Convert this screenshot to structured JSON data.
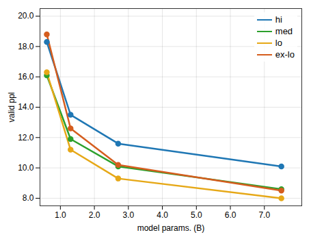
{
  "chart_data": {
    "type": "line",
    "xlabel": "model params. (B)",
    "ylabel": "valid ppl",
    "x": [
      0.6,
      1.3,
      2.7,
      7.5
    ],
    "series": [
      {
        "name": "hi",
        "color": "#1f77b4",
        "values": [
          18.3,
          13.5,
          11.6,
          10.1
        ]
      },
      {
        "name": "med",
        "color": "#2ca02c",
        "values": [
          16.1,
          11.9,
          10.1,
          8.6
        ]
      },
      {
        "name": "lo",
        "color": "#e6a817",
        "values": [
          16.3,
          11.2,
          9.3,
          8.0
        ]
      },
      {
        "name": "ex-lo",
        "color": "#d55d1e",
        "values": [
          18.8,
          12.6,
          10.2,
          8.5
        ]
      }
    ],
    "xlim": [
      0.4,
      8.1
    ],
    "ylim": [
      7.5,
      20.5
    ],
    "xticks": [
      {
        "value": 1.0,
        "label": "1.0"
      },
      {
        "value": 2.0,
        "label": "2.0"
      },
      {
        "value": 3.0,
        "label": "3.0"
      },
      {
        "value": 4.0,
        "label": "4.0"
      },
      {
        "value": 5.0,
        "label": "5.0"
      },
      {
        "value": 6.0,
        "label": "6.0"
      },
      {
        "value": 7.0,
        "label": "7.0"
      }
    ],
    "yticks": [
      {
        "value": 8.0,
        "label": "8.0"
      },
      {
        "value": 10.0,
        "label": "10.0"
      },
      {
        "value": 12.0,
        "label": "12.0"
      },
      {
        "value": 14.0,
        "label": "14.0"
      },
      {
        "value": 16.0,
        "label": "16.0"
      },
      {
        "value": 18.0,
        "label": "18.0"
      },
      {
        "value": 20.0,
        "label": "20.0"
      }
    ],
    "grid": true,
    "legend": "upper right",
    "marker": "circle"
  }
}
